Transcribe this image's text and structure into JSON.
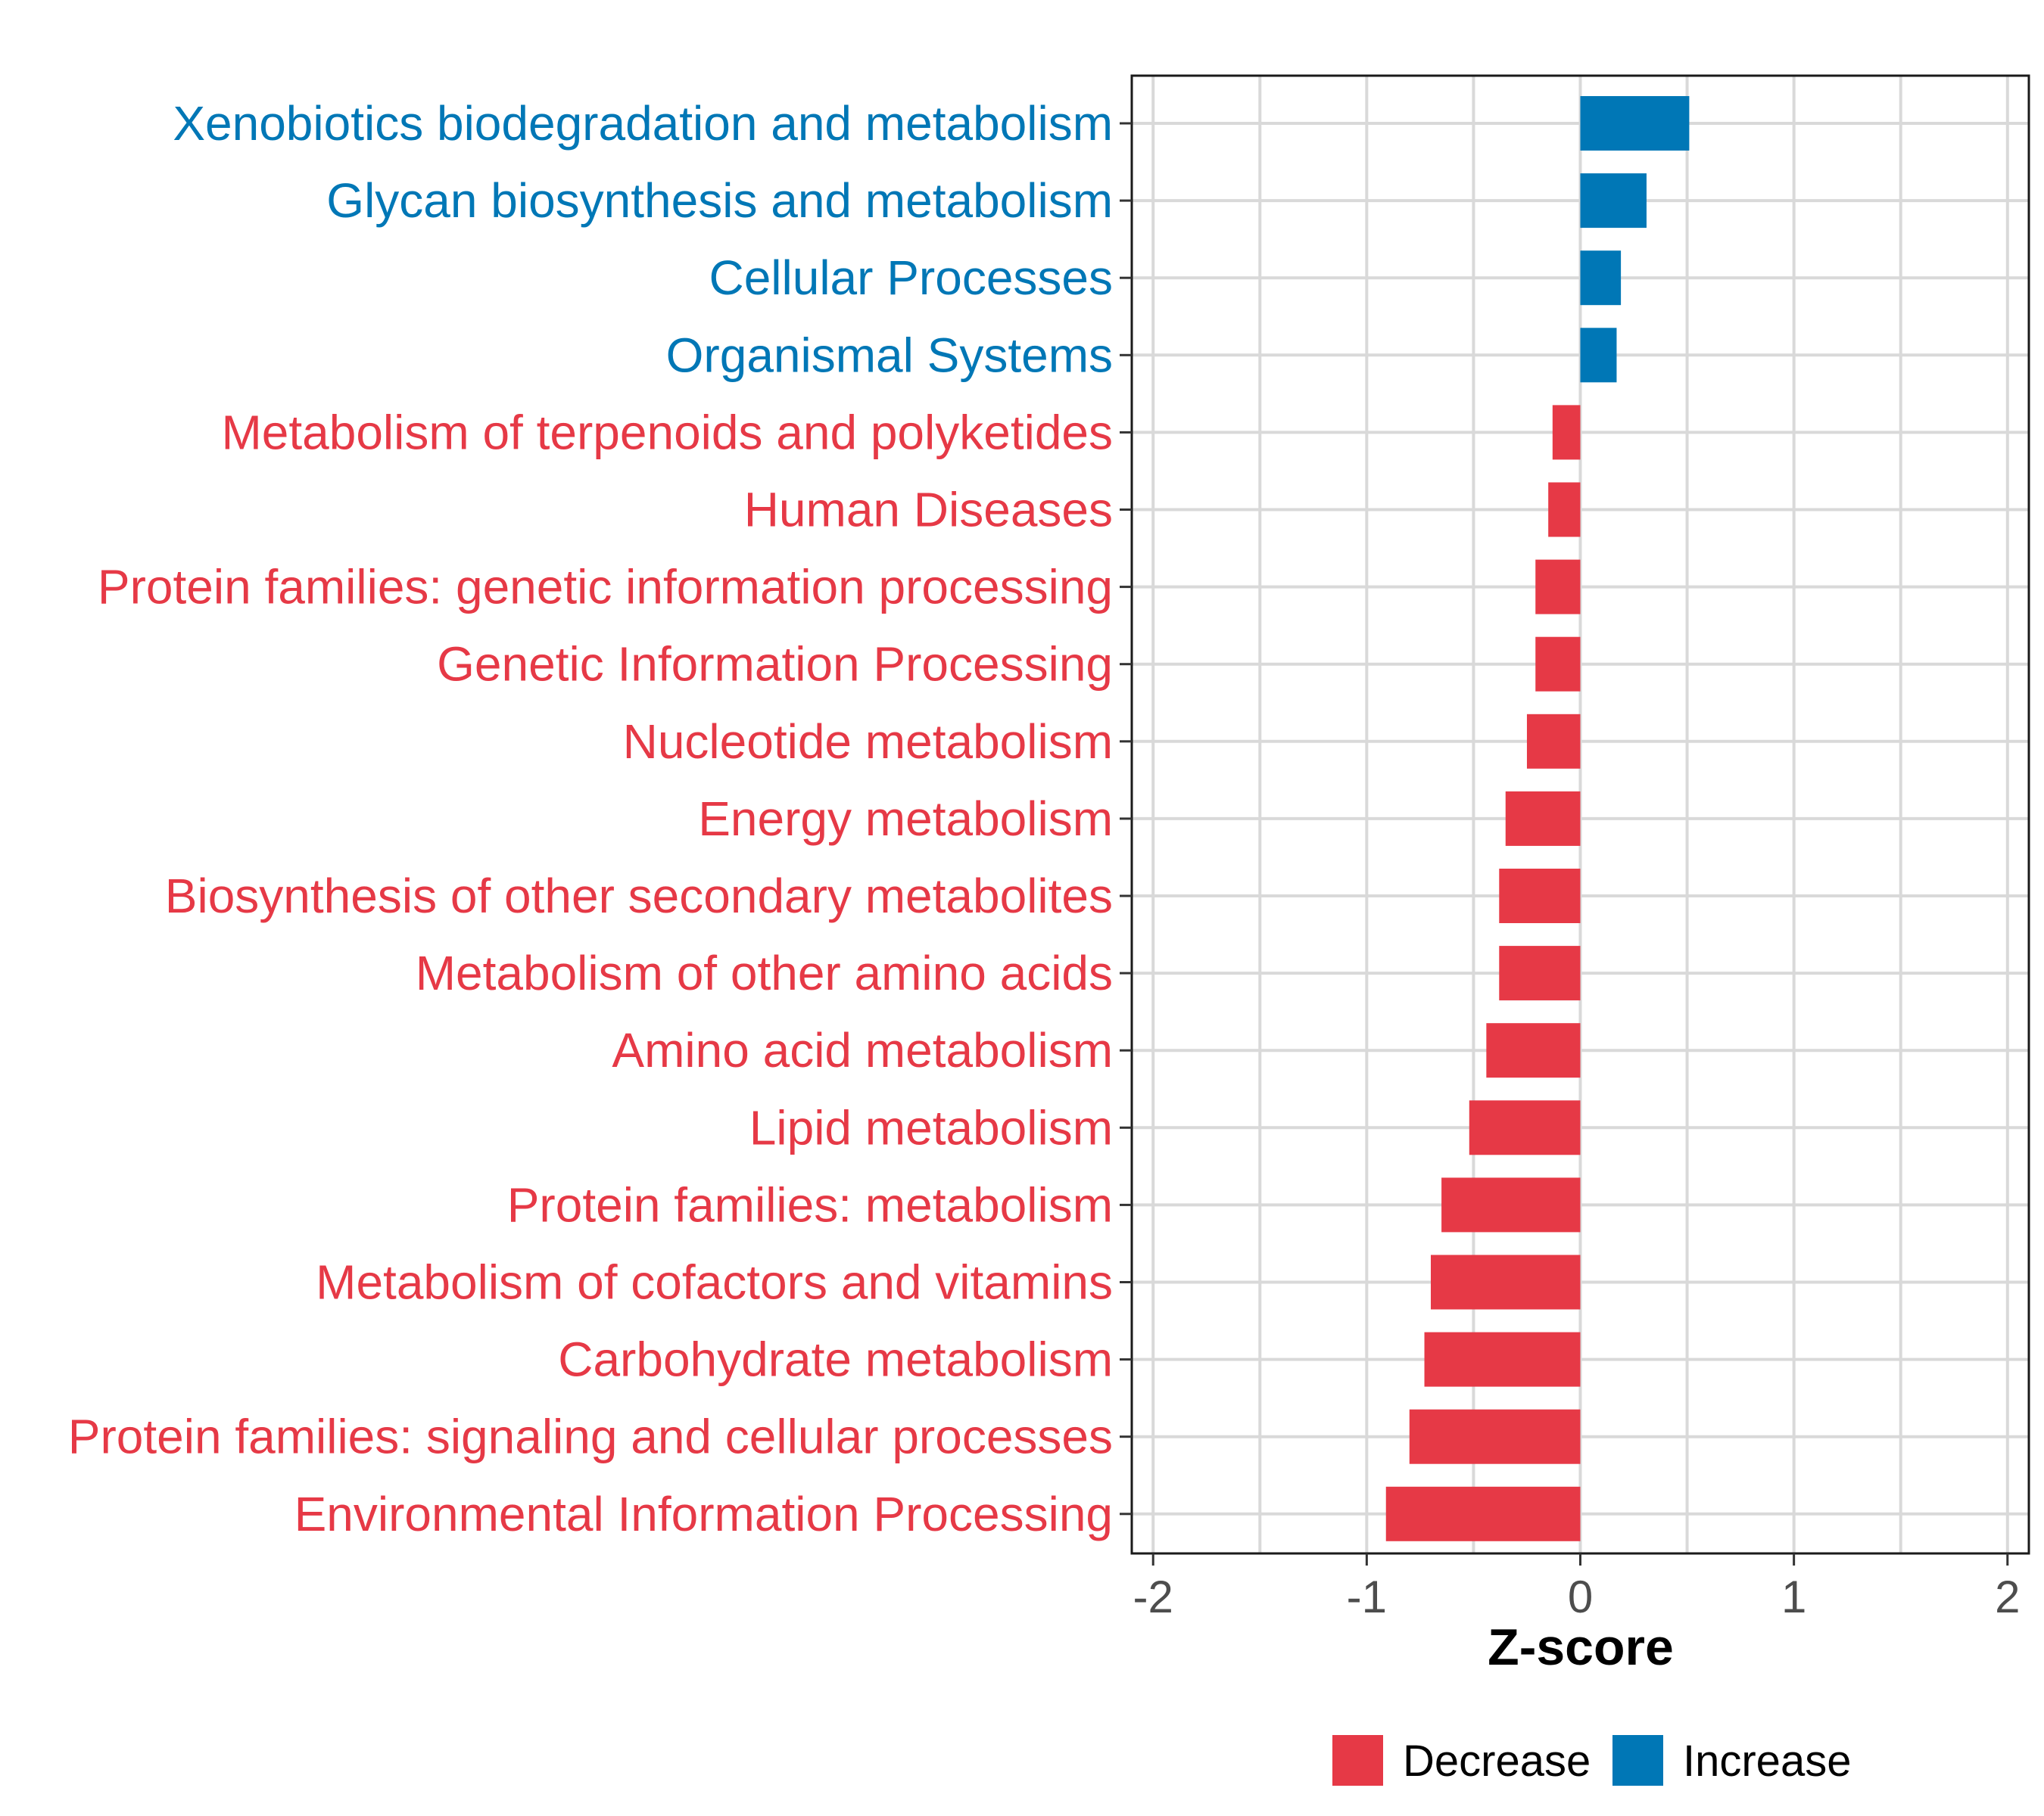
{
  "chart_data": {
    "type": "bar",
    "orientation": "horizontal",
    "title": "",
    "xlabel": "Z-score",
    "ylabel": "",
    "xlim": [
      -2.1,
      2.1
    ],
    "xticks": [
      -2,
      -1,
      0,
      1,
      2
    ],
    "xtick_labels": [
      "-2",
      "-1",
      "0",
      "1",
      "2"
    ],
    "grid": true,
    "legend_position": "bottom",
    "colors": {
      "Decrease": "#e63946",
      "Increase": "#0077b6"
    },
    "legend": [
      {
        "label": "Decrease",
        "group": "Decrease"
      },
      {
        "label": "Increase",
        "group": "Increase"
      }
    ],
    "bars": [
      {
        "category": "Xenobiotics biodegradation and metabolism",
        "value": 0.51,
        "group": "Increase"
      },
      {
        "category": "Glycan biosynthesis and metabolism",
        "value": 0.31,
        "group": "Increase"
      },
      {
        "category": "Cellular Processes",
        "value": 0.19,
        "group": "Increase"
      },
      {
        "category": "Organismal Systems",
        "value": 0.17,
        "group": "Increase"
      },
      {
        "category": "Metabolism of terpenoids and polyketides",
        "value": -0.13,
        "group": "Decrease"
      },
      {
        "category": "Human Diseases",
        "value": -0.15,
        "group": "Decrease"
      },
      {
        "category": "Protein families: genetic information processing",
        "value": -0.21,
        "group": "Decrease"
      },
      {
        "category": "Genetic Information Processing",
        "value": -0.21,
        "group": "Decrease"
      },
      {
        "category": "Nucleotide metabolism",
        "value": -0.25,
        "group": "Decrease"
      },
      {
        "category": "Energy metabolism",
        "value": -0.35,
        "group": "Decrease"
      },
      {
        "category": "Biosynthesis of other secondary metabolites",
        "value": -0.38,
        "group": "Decrease"
      },
      {
        "category": "Metabolism of other amino acids",
        "value": -0.38,
        "group": "Decrease"
      },
      {
        "category": "Amino acid metabolism",
        "value": -0.44,
        "group": "Decrease"
      },
      {
        "category": "Lipid metabolism",
        "value": -0.52,
        "group": "Decrease"
      },
      {
        "category": "Protein families: metabolism",
        "value": -0.65,
        "group": "Decrease"
      },
      {
        "category": "Metabolism of cofactors and vitamins",
        "value": -0.7,
        "group": "Decrease"
      },
      {
        "category": "Carbohydrate metabolism",
        "value": -0.73,
        "group": "Decrease"
      },
      {
        "category": "Protein families: signaling and cellular processes",
        "value": -0.8,
        "group": "Decrease"
      },
      {
        "category": "Environmental Information Processing",
        "value": -0.91,
        "group": "Decrease"
      }
    ]
  }
}
